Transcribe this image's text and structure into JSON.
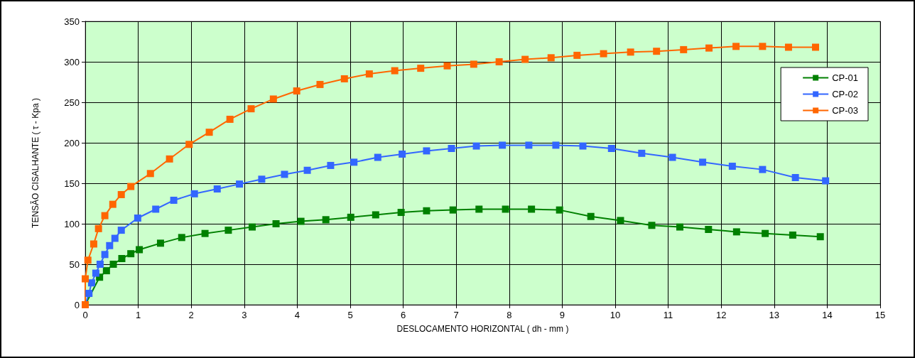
{
  "chart_data": {
    "type": "line",
    "xlabel": "DESLOCAMENTO HORIZONTAL ( dh - mm )",
    "ylabel": "TENSÃO CISALHANTE ( τ - Kpa )",
    "xlim": [
      0,
      15
    ],
    "xticks": [
      0,
      1,
      2,
      3,
      4,
      5,
      6,
      7,
      8,
      9,
      10,
      11,
      12,
      13,
      14,
      15
    ],
    "ylim": [
      0,
      350
    ],
    "yticks": [
      0,
      50,
      100,
      150,
      200,
      250,
      300,
      350
    ],
    "grid": true,
    "legend": "right",
    "marker": "square",
    "line_style": "solid",
    "series": [
      {
        "name": "CP-01",
        "color": "#008000",
        "x": [
          0,
          0.13,
          0.27,
          0.4,
          0.53,
          0.69,
          0.86,
          1.02,
          1.42,
          1.82,
          2.26,
          2.7,
          3.15,
          3.6,
          4.07,
          4.54,
          5.01,
          5.48,
          5.96,
          6.44,
          6.94,
          7.43,
          7.93,
          8.42,
          8.95,
          9.54,
          10.1,
          10.69,
          11.22,
          11.76,
          12.29,
          12.83,
          13.35,
          13.87
        ],
        "values": [
          0,
          null,
          34,
          42,
          50,
          57,
          63,
          68,
          76,
          83,
          88,
          92,
          96,
          100,
          103,
          105,
          108,
          111,
          114,
          116,
          117,
          118,
          118,
          118,
          117,
          109,
          104,
          98,
          96,
          93,
          90,
          88,
          86,
          84
        ]
      },
      {
        "name": "CP-02",
        "color": "#3366ff",
        "x": [
          0,
          0.07,
          0.12,
          0.2,
          0.28,
          0.37,
          0.46,
          0.56,
          0.68,
          0.99,
          1.33,
          1.67,
          2.06,
          2.49,
          2.91,
          3.33,
          3.76,
          4.19,
          4.63,
          5.07,
          5.52,
          5.98,
          6.44,
          6.91,
          7.38,
          7.87,
          8.37,
          8.88,
          9.39,
          9.93,
          10.5,
          11.08,
          11.65,
          12.21,
          12.78,
          13.4,
          13.97
        ],
        "values": [
          0,
          14,
          27,
          39,
          50,
          62,
          73,
          82,
          92,
          107,
          118,
          129,
          137,
          143,
          149,
          155,
          161,
          166,
          172,
          176,
          182,
          186,
          190,
          193,
          196,
          197,
          197,
          197,
          196,
          193,
          187,
          182,
          176,
          171,
          167,
          157,
          153
        ]
      },
      {
        "name": "CP-03",
        "color": "#ff6600",
        "x": [
          0,
          0,
          0.05,
          0.16,
          0.25,
          0.37,
          0.52,
          0.68,
          0.86,
          1.23,
          1.59,
          1.96,
          2.34,
          2.73,
          3.13,
          3.55,
          3.99,
          4.43,
          4.89,
          5.36,
          5.84,
          6.33,
          6.83,
          7.33,
          7.81,
          8.3,
          8.79,
          9.28,
          9.78,
          10.29,
          10.78,
          11.29,
          11.77,
          12.28,
          12.78,
          13.27,
          13.78
        ],
        "values": [
          0,
          32,
          55,
          75,
          94,
          110,
          124,
          136,
          146,
          162,
          180,
          198,
          213,
          229,
          242,
          254,
          264,
          272,
          279,
          285,
          289,
          292,
          295,
          297,
          300,
          303,
          305,
          308,
          310,
          312,
          313,
          315,
          317,
          319,
          319,
          318,
          318
        ]
      }
    ]
  }
}
